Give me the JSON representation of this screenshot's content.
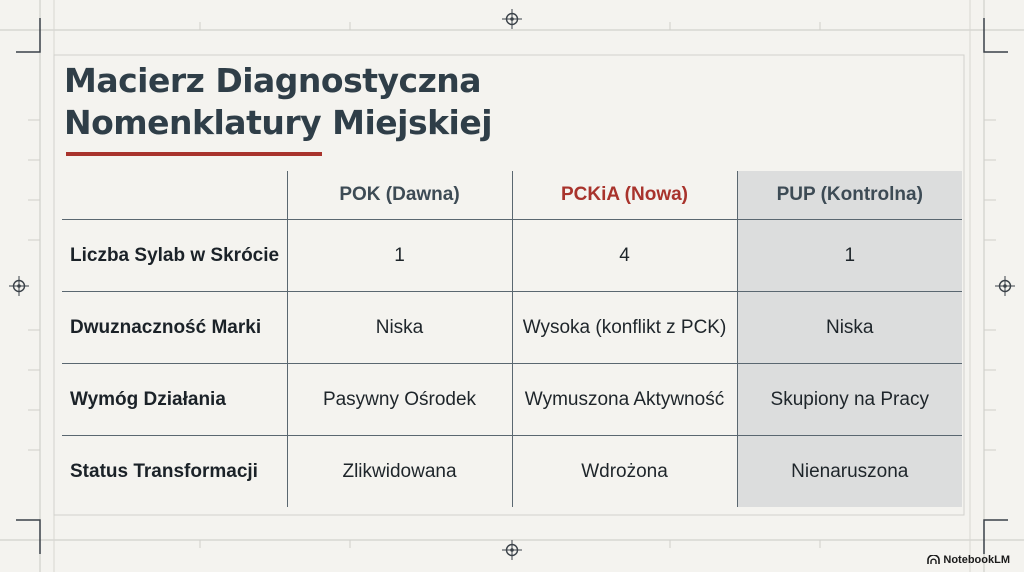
{
  "title": {
    "line1": "Macierz Diagnostyczna",
    "line2": "Nomenklatury Miejskiej"
  },
  "table": {
    "columns": [
      "",
      "POK (Dawna)",
      "PCKiA (Nowa)",
      "PUP (Kontrolna)"
    ],
    "rows": [
      {
        "label": "Liczba Sylab w Skrócie",
        "cells": [
          "1",
          "4",
          "1"
        ]
      },
      {
        "label": "Dwuznaczność Marki",
        "cells": [
          "Niska",
          "Wysoka (konflikt z PCK)",
          "Niska"
        ]
      },
      {
        "label": "Wymóg Działania",
        "cells": [
          "Pasywny Ośrodek",
          "Wymuszona Aktywność",
          "Skupiony na Pracy"
        ]
      },
      {
        "label": "Status Transformacji",
        "cells": [
          "Zlikwidowana",
          "Wdrożona",
          "Nienaruszona"
        ]
      }
    ]
  },
  "watermark": {
    "label": "NotebookLM"
  },
  "colors": {
    "background": "#f4f3ef",
    "title": "#2f3e48",
    "accent": "#a8332c",
    "control_column": "#dcdddd",
    "grid": "#5a6770"
  },
  "icons": [
    "crosshair-icon",
    "notebooklm-logo-icon"
  ]
}
